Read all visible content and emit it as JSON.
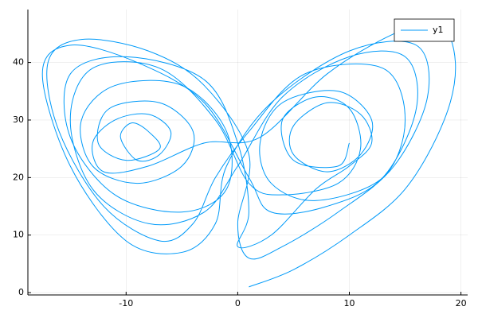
{
  "chart_data": {
    "type": "line",
    "x": [
      1,
      5,
      10,
      15,
      18.5,
      19.5,
      18,
      14,
      8,
      2,
      -3,
      -8,
      -12,
      -13,
      -11,
      -8,
      -6,
      -7,
      -9,
      -10.5,
      -9.5,
      -8,
      -7,
      -10,
      -12.5,
      -11.5,
      -7,
      -4,
      -5,
      -9,
      -13,
      -14,
      -11,
      -5,
      -1,
      -1,
      -5,
      -11,
      -15,
      -15,
      -10,
      -3,
      0,
      1,
      0,
      3,
      7,
      10,
      12,
      11,
      8,
      5,
      5,
      8,
      11,
      12,
      9,
      4,
      2,
      3,
      7,
      13,
      15,
      13,
      6,
      1,
      -2,
      -4,
      -7,
      -12,
      -16,
      -17,
      -14,
      -8,
      -3,
      1,
      0,
      1,
      4,
      9,
      14,
      17,
      16,
      10,
      3,
      -1,
      -2,
      -5,
      -10,
      -15,
      -17.5,
      -15,
      -9,
      -3,
      1,
      3,
      8,
      13,
      16,
      15,
      10,
      4,
      0,
      -3,
      -8,
      -13,
      -15,
      -13,
      -7,
      -2,
      1,
      4,
      9,
      11,
      10,
      7,
      4,
      5,
      9,
      10
    ],
    "series": [
      {
        "name": "y1",
        "color": "#009af9",
        "values": [
          1,
          4,
          10,
          18,
          30,
          40,
          47,
          45,
          38,
          27,
          26,
          22,
          21,
          26,
          30,
          31,
          28,
          24,
          23,
          27,
          29.5,
          28,
          25,
          23,
          26,
          32,
          33,
          28,
          22,
          19,
          22,
          30,
          36,
          36,
          28,
          18,
          14,
          17,
          27,
          38,
          41,
          37,
          26,
          14,
          8,
          10,
          18,
          22,
          26,
          31,
          33,
          29,
          24,
          21,
          24,
          30,
          35,
          33,
          26,
          19,
          16,
          20,
          30,
          39,
          38,
          28,
          20,
          12,
          9,
          15,
          28,
          40,
          44,
          42,
          36,
          24,
          12,
          6,
          8,
          14,
          22,
          34,
          43,
          42,
          33,
          22,
          12,
          7,
          9,
          22,
          38,
          43,
          40,
          33,
          20,
          14,
          15,
          20,
          32,
          41,
          41,
          34,
          22,
          14,
          12,
          18,
          30,
          39,
          39,
          30,
          19,
          17,
          19,
          25,
          32,
          34,
          30,
          23,
          22,
          26
        ]
      }
    ],
    "xlim": [
      -18.8,
      20.6
    ],
    "xticks": [
      -10,
      0,
      10,
      20
    ],
    "ylim": [
      -0.4,
      49.2
    ],
    "yticks": [
      0,
      10,
      20,
      30,
      40
    ],
    "grid": true,
    "legend": "top-right"
  }
}
